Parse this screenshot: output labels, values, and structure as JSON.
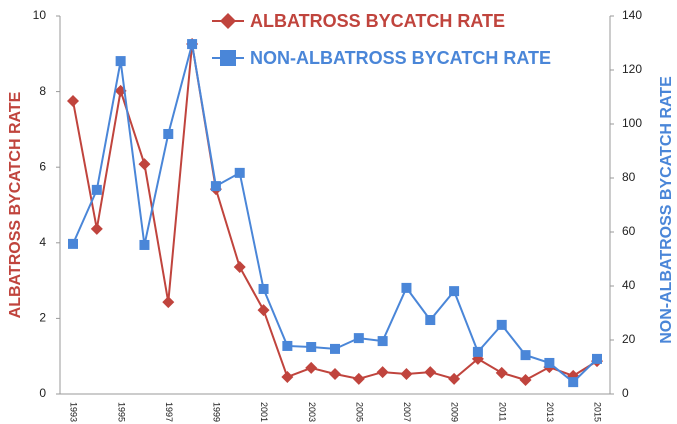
{
  "chart_data": {
    "type": "line",
    "categories": [
      "1993",
      null,
      "1995",
      null,
      "1997",
      null,
      "1999",
      null,
      "2001",
      null,
      "2003",
      null,
      "2005",
      null,
      "2007",
      null,
      "2009",
      null,
      "2011",
      null,
      "2013",
      null,
      "2015"
    ],
    "series": [
      {
        "name": "ALBATROSS BYCATCH RATE",
        "color": "#c0443d",
        "marker": "diamond",
        "values": [
          7.75,
          4.37,
          8.02,
          6.08,
          2.43,
          9.26,
          5.42,
          3.36,
          2.22,
          0.45,
          0.69,
          0.53,
          0.4,
          0.58,
          0.53,
          0.58,
          0.4,
          0.93,
          0.56,
          0.37,
          0.71,
          0.48,
          0.87
        ]
      },
      {
        "name": "NON-ALBATROSS BYCATCH RATE",
        "color": "#4a86d8",
        "marker": "square",
        "axis": "y2",
        "values": [
          55.6,
          75.6,
          123.3,
          55.2,
          96.3,
          129.6,
          77.0,
          81.9,
          38.9,
          17.8,
          17.4,
          16.7,
          20.7,
          19.6,
          39.3,
          27.4,
          38.1,
          15.6,
          25.6,
          14.4,
          11.5,
          4.4,
          13.0
        ]
      }
    ],
    "ylabel": "ALBATROSS BYCATCH RATE",
    "y2label": "NON-ALBATROSS BYCATCH RATE",
    "ylim": [
      0,
      10
    ],
    "yticks": [
      0,
      2,
      4,
      6,
      8,
      10
    ],
    "y2lim": [
      0,
      140
    ],
    "y2ticks": [
      0,
      20,
      40,
      60,
      80,
      100,
      120,
      140
    ],
    "legend": "top"
  }
}
